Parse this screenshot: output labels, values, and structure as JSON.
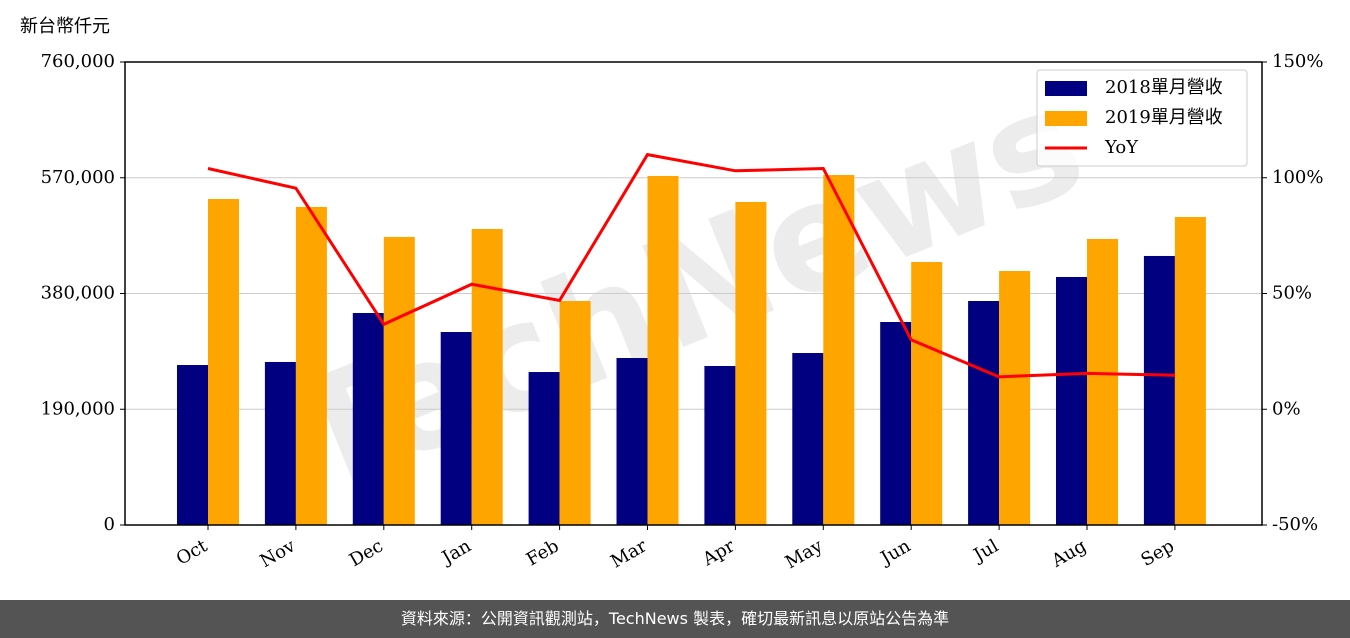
{
  "chart_data": {
    "type": "bar-line",
    "y_label": "新台幣仟元",
    "watermark": "TechNews",
    "categories": [
      "Oct",
      "Nov",
      "Dec",
      "Jan",
      "Feb",
      "Mar",
      "Apr",
      "May",
      "Jun",
      "Jul",
      "Aug",
      "Sep"
    ],
    "series": [
      {
        "name": "2018單月營收",
        "color": "#000080",
        "kind": "bar",
        "values": [
          262600,
          267600,
          348000,
          316800,
          251100,
          274100,
          261000,
          282300,
          333200,
          367700,
          407100,
          441600
        ]
      },
      {
        "name": "2019單月營收",
        "color": "#ffa500",
        "kind": "bar",
        "values": [
          535100,
          522000,
          472800,
          485900,
          367700,
          572900,
          530200,
          574500,
          431700,
          416900,
          469500,
          505600
        ]
      },
      {
        "name": "YoY",
        "color": "#ff0000",
        "kind": "line",
        "axis": "y2",
        "values": [
          104,
          95.5,
          36.7,
          54,
          47,
          110,
          103,
          104,
          30,
          14,
          15.5,
          14.7
        ]
      }
    ],
    "ylim": [
      0,
      760000
    ],
    "yticks": [
      0,
      {
        "value": 190000,
        "label": "190,000"
      },
      {
        "value": 380000,
        "label": "380,000"
      },
      {
        "value": 570000,
        "label": "570,000"
      },
      {
        "value": 760000,
        "label": "760,000"
      }
    ],
    "y2lim": [
      -50,
      150
    ],
    "y2ticks": [
      {
        "value": -50,
        "label": "-50%"
      },
      {
        "value": 0,
        "label": "0%"
      },
      {
        "value": 50,
        "label": "50%"
      },
      {
        "value": 100,
        "label": "100%"
      },
      {
        "value": 150,
        "label": "150%"
      }
    ],
    "grid": true,
    "legend": "upper right",
    "source": "資料來源：公開資訊觀測站，TechNews 製表，確切最新訊息以原站公告為準"
  }
}
